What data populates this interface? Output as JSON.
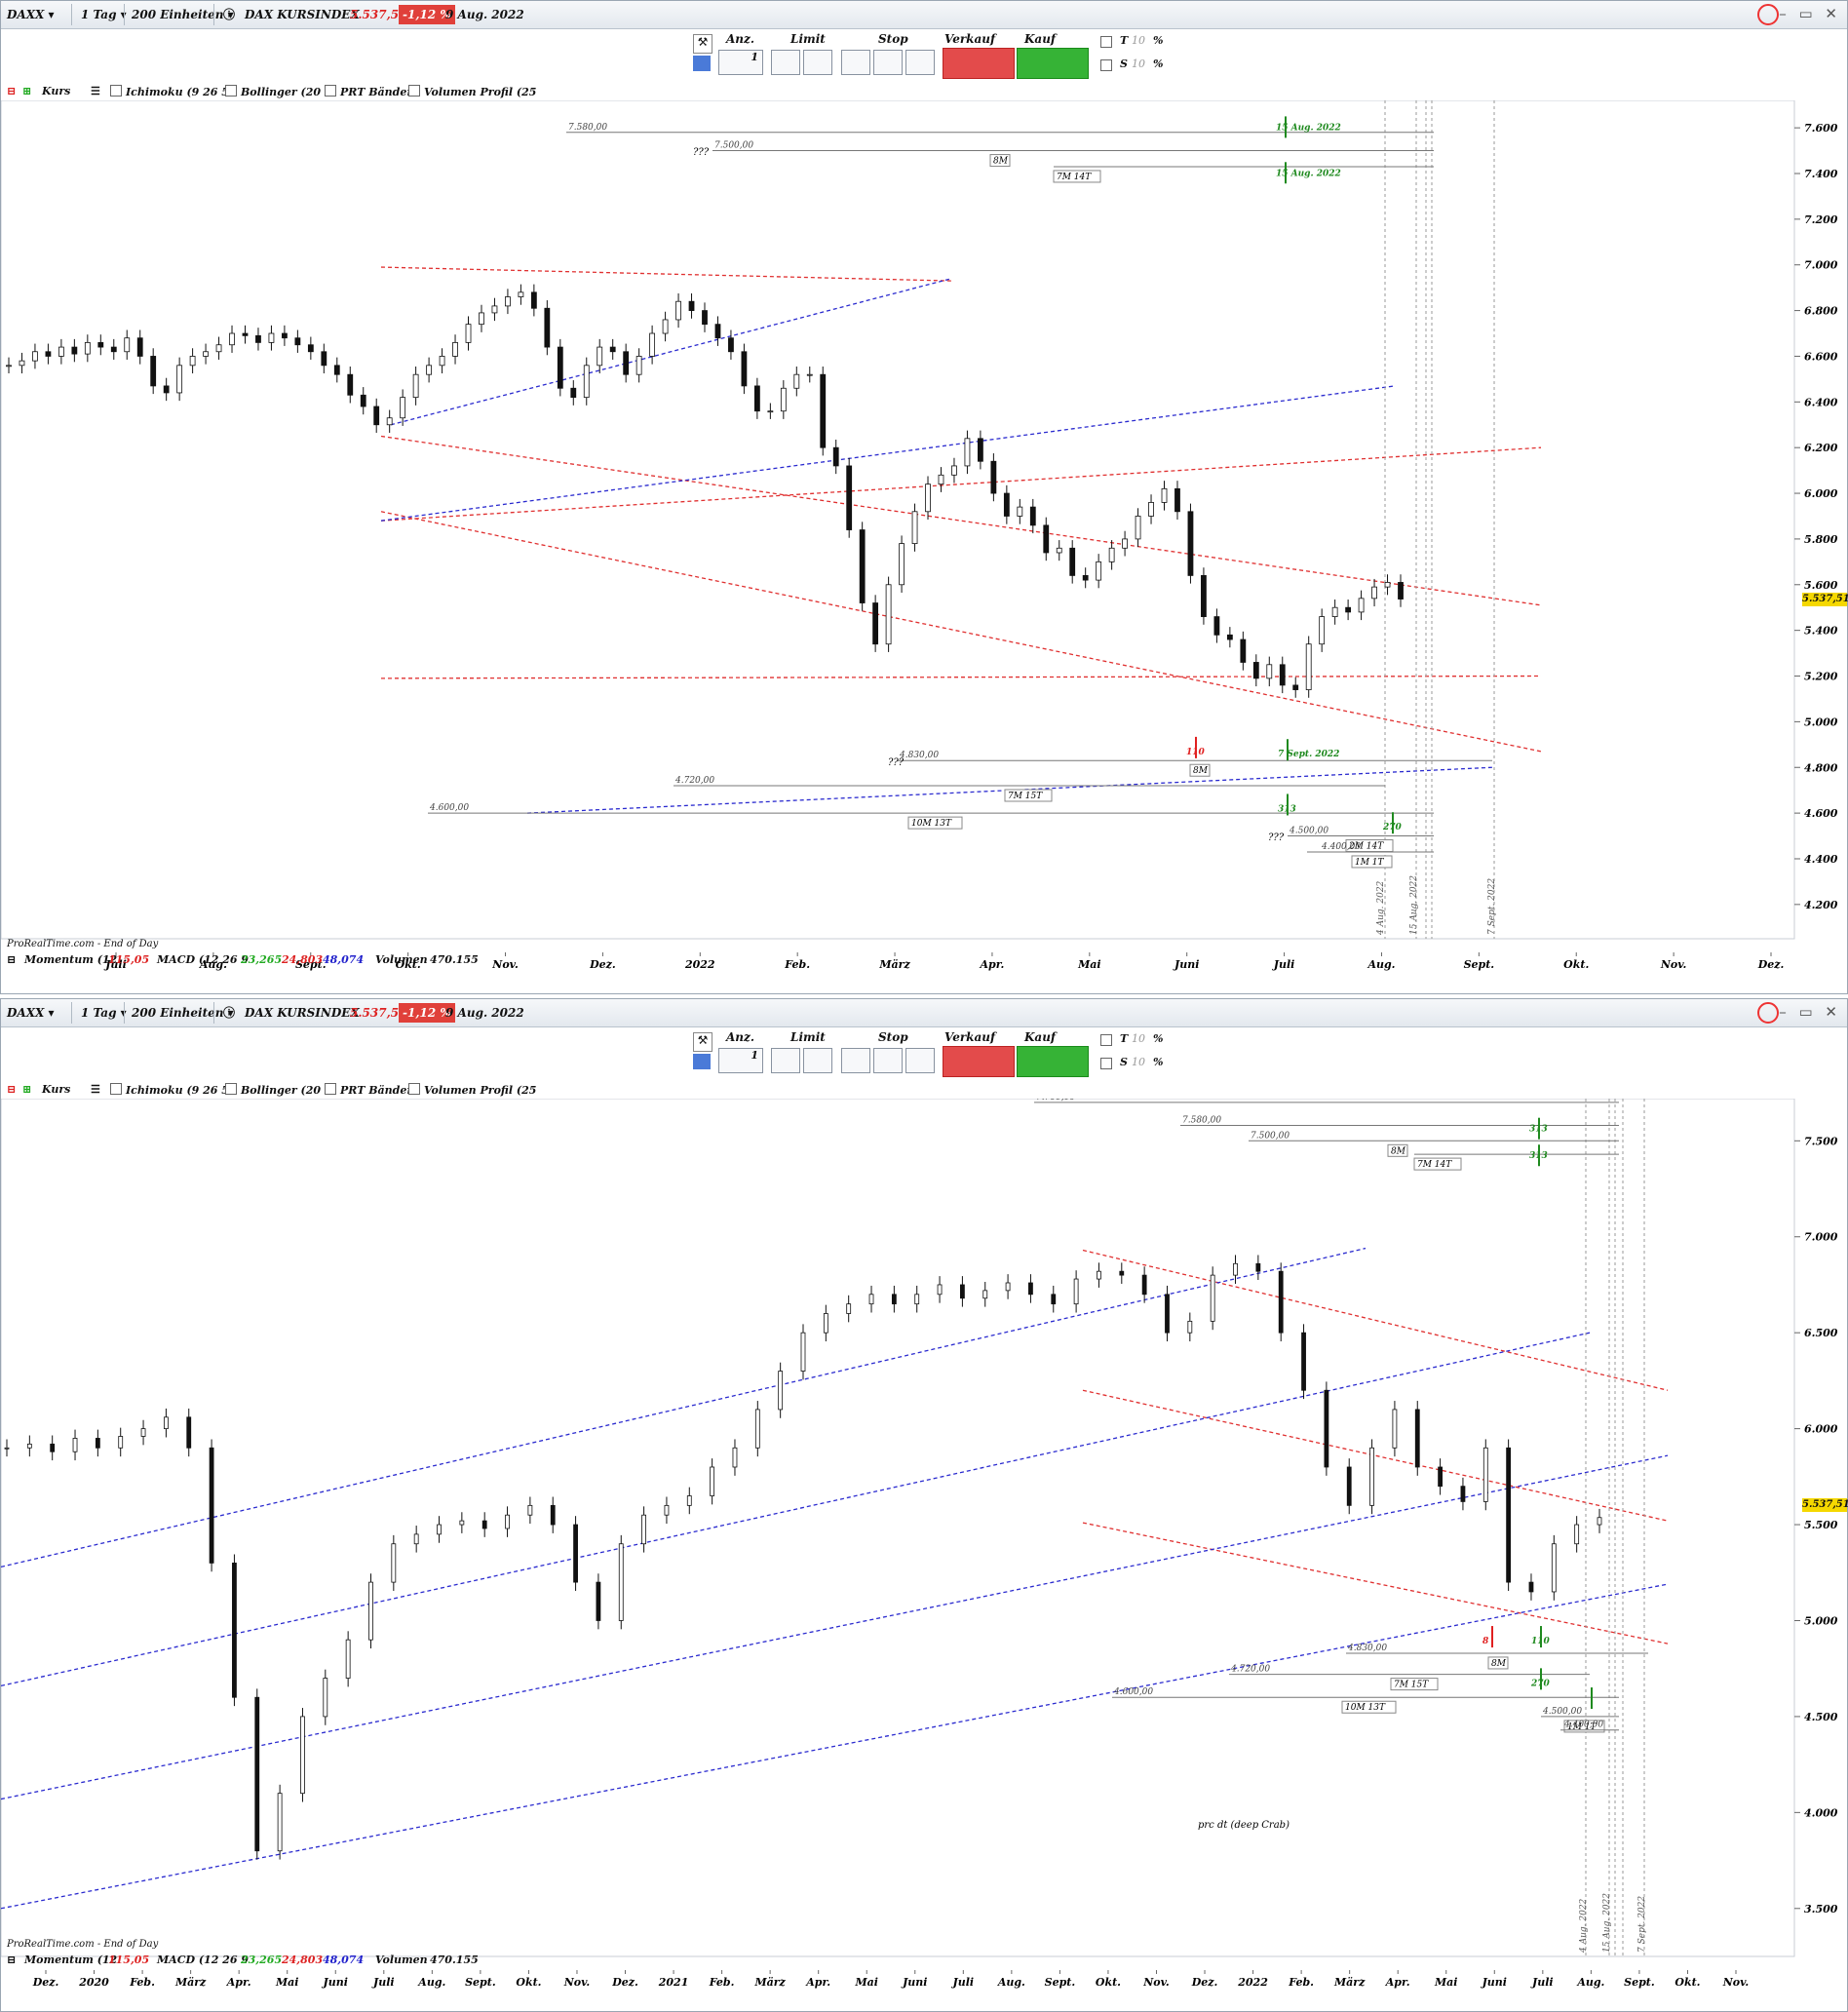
{
  "toolbar": {
    "symbol": "DAXX",
    "interval": "1 Tag",
    "units": "200 Einheiten",
    "instrument_name": "DAX KURSINDEX",
    "last_price": "5.537,51",
    "change_pct": "-1,12 %",
    "date": "9 Aug. 2022"
  },
  "order_panel": {
    "qty_label": "Anz.",
    "qty_value": "1",
    "limit_label": "Limit",
    "stop_label": "Stop",
    "sell_label": "Verkauf MKT",
    "buy_label": "Kauf MKT",
    "t_label": "T",
    "s_label": "S",
    "t_value": "10",
    "s_value": "10",
    "pct": "%"
  },
  "indicators_top": [
    "Kurs",
    "Ichimoku (9 26 52",
    "Bollinger (20 2",
    "PRT Bänder",
    "Volumen Profil (25"
  ],
  "indicators_bottom": {
    "momentum": "Momentum (12",
    "momentum_val": "115,05",
    "macd": "MACD (12 26 9",
    "macd_v1": "23,265",
    "macd_v2": "24,803",
    "macd_v3": "48,074",
    "volume": "Volumen",
    "volume_val": "470.155"
  },
  "watermark": "ProRealTime.com - End of Day",
  "price_tag": "5.537,51",
  "colors": {
    "trend_blue": "#2b2bcf",
    "trend_red": "#e03030",
    "up_arrow": "#1f8a1f",
    "down_arrow": "#e02020"
  },
  "chart_data": [
    {
      "type": "candlestick",
      "title": "",
      "y_ticks": [
        "7.600",
        "7.400",
        "7.200",
        "7.000",
        "6.800",
        "6.600",
        "6.400",
        "6.200",
        "6.000",
        "5.800",
        "5.600",
        "5.400",
        "5.200",
        "5.000",
        "4.800",
        "4.600",
        "4.400",
        "4.200"
      ],
      "ylim": [
        4050,
        7720
      ],
      "x_ticks": [
        "Juli",
        "Aug.",
        "Sept.",
        "Okt.",
        "Nov.",
        "Dez.",
        "2022",
        "Feb.",
        "März",
        "Apr.",
        "Mai",
        "Juni",
        "Juli",
        "Aug.",
        "Sept.",
        "Okt.",
        "Nov.",
        "Dez."
      ],
      "series_close": [
        6560,
        6580,
        6620,
        6600,
        6640,
        6610,
        6660,
        6640,
        6620,
        6680,
        6600,
        6470,
        6440,
        6560,
        6600,
        6620,
        6650,
        6700,
        6690,
        6660,
        6700,
        6680,
        6650,
        6620,
        6560,
        6520,
        6430,
        6380,
        6300,
        6330,
        6420,
        6520,
        6560,
        6600,
        6660,
        6740,
        6790,
        6820,
        6860,
        6880,
        6810,
        6640,
        6460,
        6420,
        6560,
        6640,
        6620,
        6520,
        6600,
        6700,
        6760,
        6840,
        6800,
        6740,
        6680,
        6620,
        6470,
        6360,
        6360,
        6460,
        6520,
        6520,
        6200,
        6120,
        5840,
        5520,
        5340,
        5600,
        5780,
        5920,
        6040,
        6080,
        6120,
        6240,
        6140,
        6000,
        5900,
        5940,
        5860,
        5740,
        5760,
        5640,
        5620,
        5700,
        5760,
        5800,
        5900,
        5960,
        6020,
        5920,
        5640,
        5460,
        5380,
        5360,
        5260,
        5190,
        5250,
        5160,
        5140,
        5340,
        5460,
        5500,
        5480,
        5540,
        5590,
        5610,
        5537
      ],
      "annotations": [
        "7.580,00",
        "7.500,00",
        "8M",
        "7M 14T",
        "4.830,00",
        "4.720,00",
        "7M 15T",
        "4.600,00",
        "10M 13T",
        "4.500,00",
        "4.400,00",
        "2M 14T",
        "1M 1T",
        "4 Aug. 2022",
        "15 Aug. 2022",
        "7 Sept. 2022",
        "313",
        "110",
        "270",
        "8",
        "10",
        "???"
      ]
    },
    {
      "type": "candlestick",
      "title": "",
      "y_ticks": [
        "7.500",
        "7.000",
        "6.500",
        "6.000",
        "5.500",
        "5.000",
        "4.500",
        "4.000",
        "3.500"
      ],
      "ylim": [
        3250,
        7720
      ],
      "x_ticks": [
        "Dez.",
        "2020",
        "Feb.",
        "März",
        "Apr.",
        "Mai",
        "Juni",
        "Juli",
        "Aug.",
        "Sept.",
        "Okt.",
        "Nov.",
        "Dez.",
        "2021",
        "Feb.",
        "März",
        "Apr.",
        "Mai",
        "Juni",
        "Juli",
        "Aug.",
        "Sept.",
        "Okt.",
        "Nov.",
        "Dez.",
        "2022",
        "Feb.",
        "März",
        "Apr.",
        "Mai",
        "Juni",
        "Juli",
        "Aug.",
        "Sept.",
        "Okt.",
        "Nov."
      ],
      "series_close": [
        5900,
        5920,
        5880,
        5950,
        5900,
        5960,
        6000,
        6060,
        5900,
        5300,
        4600,
        3800,
        4100,
        4500,
        4700,
        4900,
        5200,
        5400,
        5450,
        5500,
        5520,
        5480,
        5550,
        5600,
        5500,
        5200,
        5000,
        5400,
        5550,
        5600,
        5650,
        5800,
        5900,
        6100,
        6300,
        6500,
        6600,
        6650,
        6700,
        6650,
        6700,
        6750,
        6680,
        6720,
        6760,
        6700,
        6650,
        6780,
        6820,
        6800,
        6700,
        6500,
        6560,
        6800,
        6860,
        6820,
        6500,
        6200,
        5800,
        5600,
        5900,
        6100,
        5800,
        5700,
        5620,
        5900,
        5200,
        5150,
        5400,
        5500,
        5537
      ],
      "annotations": [
        "7.700,00",
        "7.580,00",
        "7.500,00",
        "8M",
        "7M 14T",
        "4.830,00",
        "4.720,00",
        "7M 15T",
        "4.600,00",
        "10M 13T",
        "4.500,00",
        "4.400,00",
        "1M 1T",
        "prc dt (deep Crab)",
        "313",
        "110",
        "270",
        "8"
      ]
    }
  ]
}
